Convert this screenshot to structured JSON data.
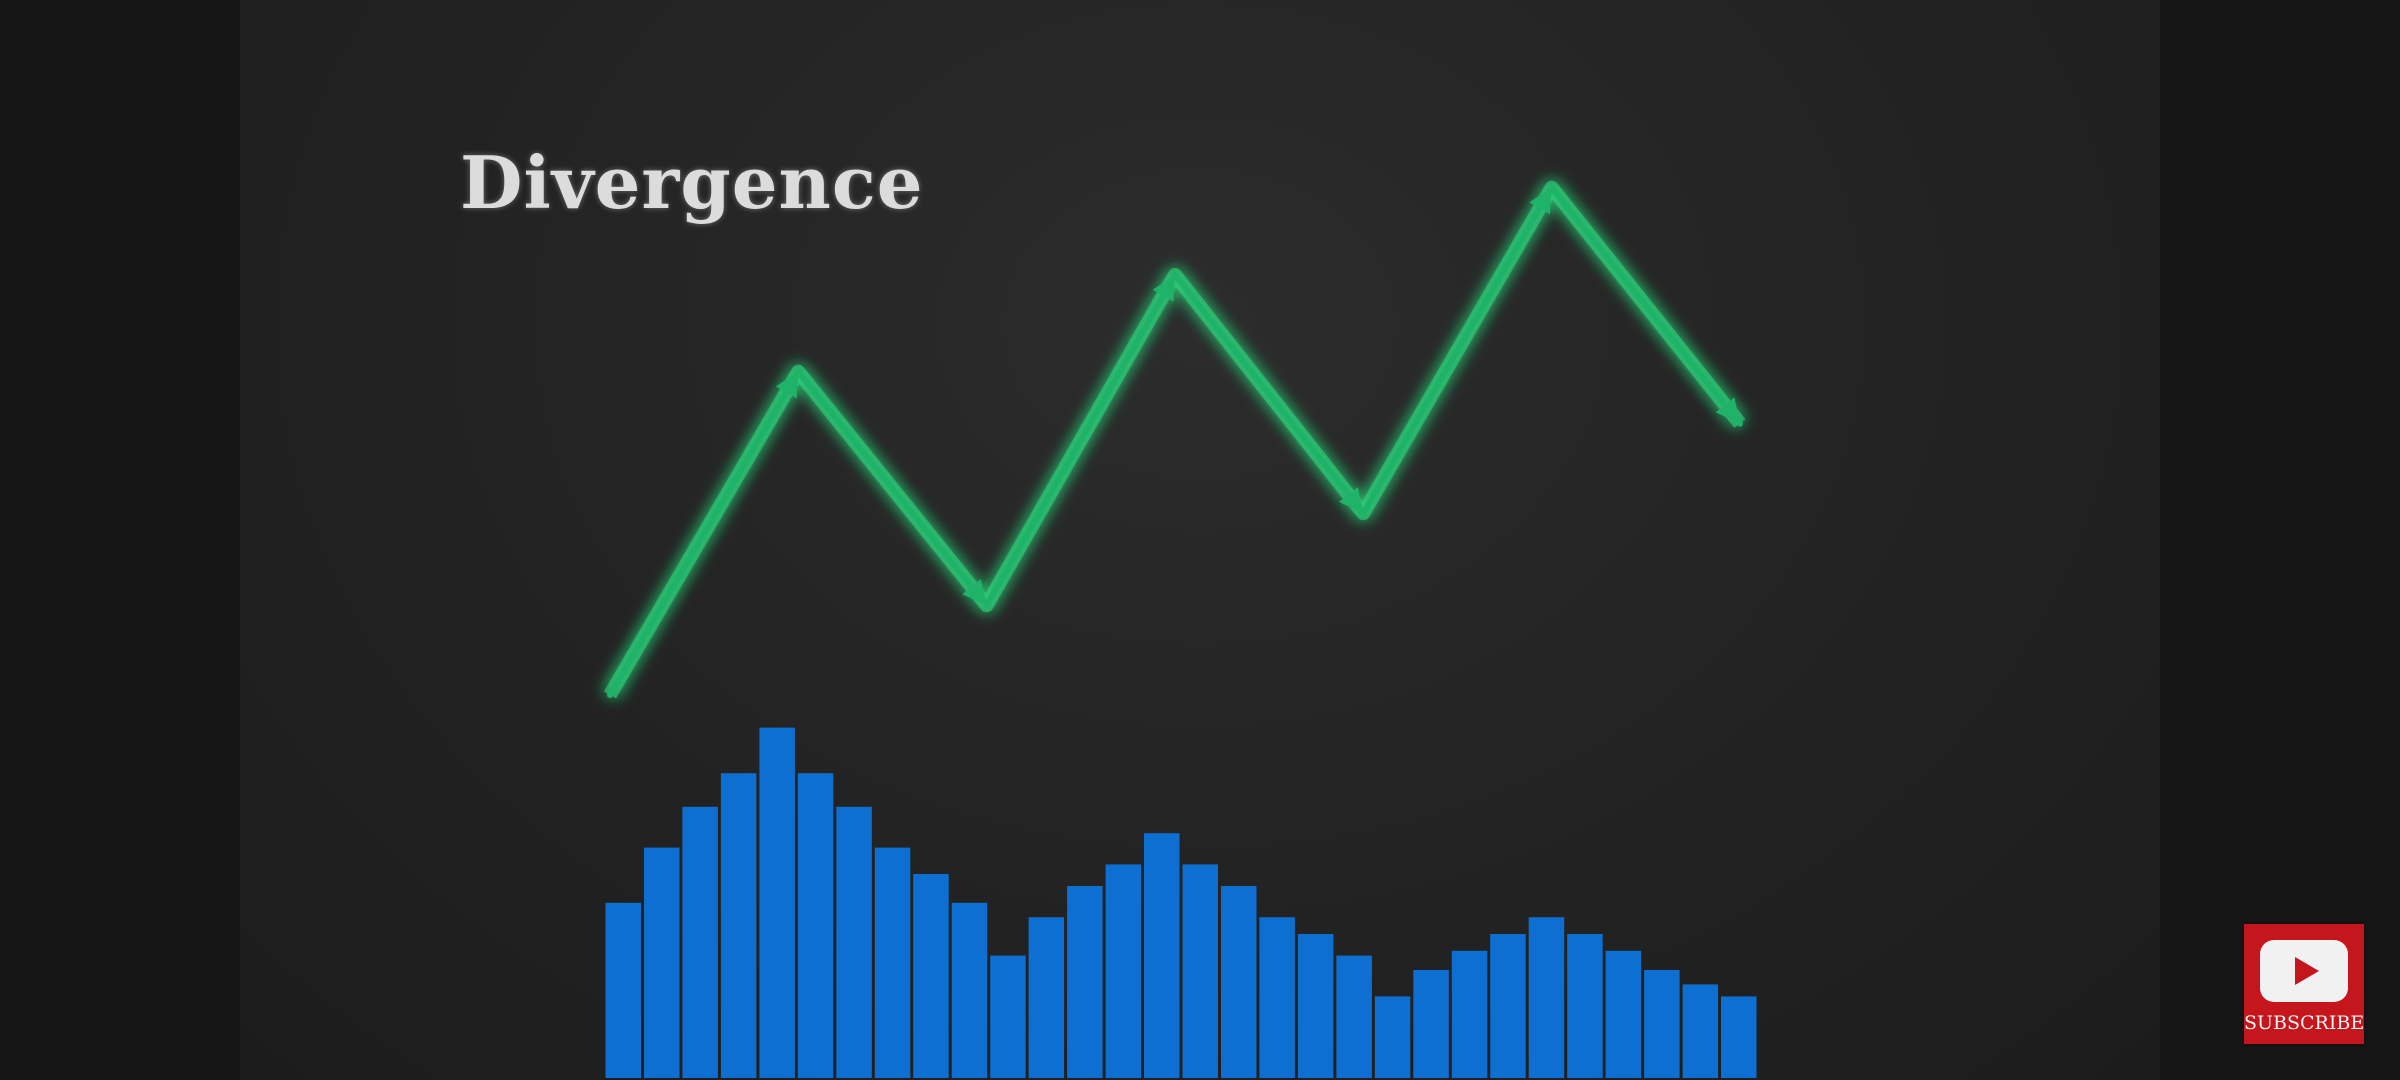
{
  "video": {
    "title": "Divergence"
  },
  "colors": {
    "price_line": "#1fb36a",
    "price_glow": "#2ee07f",
    "histogram_bar": "#0d6fd1",
    "subscribe_bg": "#c4161c"
  },
  "chart_data": {
    "type": "line",
    "title": "Divergence",
    "series": [
      {
        "type": "line",
        "values": [
          0,
          1.37,
          0.38,
          1.78,
          0.77,
          2.15,
          1.15
        ]
      },
      {
        "type": "bar",
        "values": [
          7.3,
          9.6,
          11.3,
          12.7,
          14.6,
          12.7,
          11.3,
          9.6,
          8.5,
          7.3,
          5.1,
          6.7,
          8.0,
          8.9,
          10.2,
          8.9,
          8.0,
          6.7,
          6.0,
          5.1,
          3.4,
          4.5,
          5.3,
          6.0,
          6.7,
          6.0,
          5.3,
          4.5,
          3.9,
          3.4
        ]
      }
    ]
  },
  "subscribe": {
    "label": "SUBSCRIBE",
    "icon": "youtube-play-icon"
  }
}
